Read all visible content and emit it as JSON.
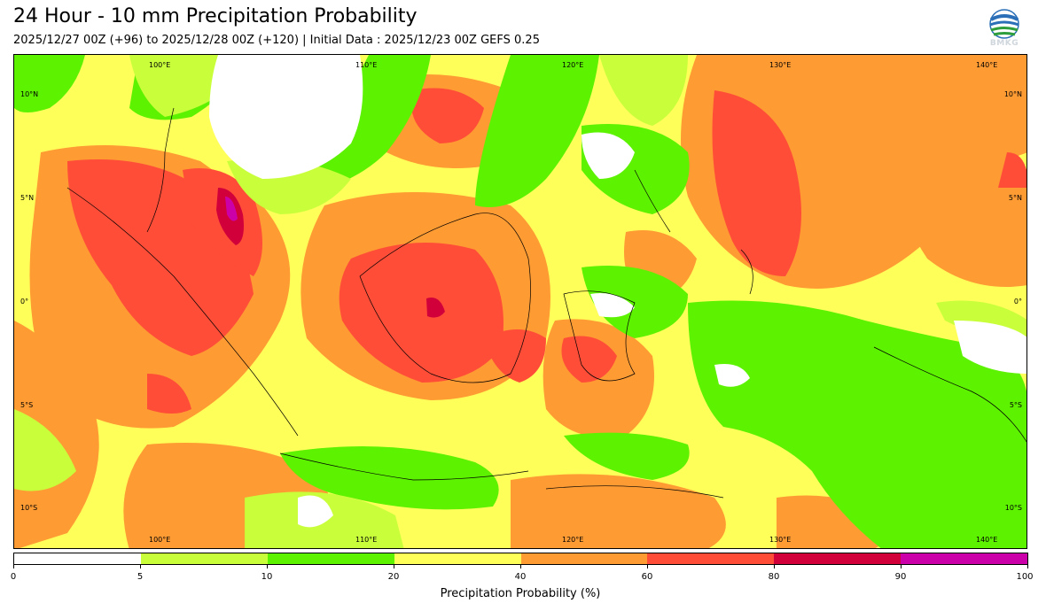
{
  "title": "24 Hour - 10 mm Precipitation Probability",
  "subtitle": "2025/12/27 00Z (+96) to 2025/12/28 00Z (+120) | Initial Data : 2025/12/23 00Z GEFS 0.25",
  "logo": {
    "text": "BMKG",
    "icon": "bmkg-logo-icon"
  },
  "map": {
    "lon_labels": [
      "100°E",
      "110°E",
      "120°E",
      "130°E",
      "140°E"
    ],
    "lat_labels": [
      "10°N",
      "5°N",
      "0°",
      "5°S",
      "10°S"
    ]
  },
  "colorbar": {
    "xlabel": "Precipitation Probability (%)",
    "ticks": [
      "0",
      "5",
      "10",
      "20",
      "40",
      "60",
      "80",
      "90",
      "100"
    ],
    "bins": [
      {
        "range": "0-5",
        "color": "#ffffff"
      },
      {
        "range": "5-10",
        "color": "#c8ff3a"
      },
      {
        "range": "10-20",
        "color": "#5cf200"
      },
      {
        "range": "20-40",
        "color": "#ffff5a"
      },
      {
        "range": "40-60",
        "color": "#ff9b33"
      },
      {
        "range": "60-80",
        "color": "#ff4d38"
      },
      {
        "range": "80-90",
        "color": "#d2003a"
      },
      {
        "range": "90-100",
        "color": "#cc00a8"
      }
    ]
  }
}
